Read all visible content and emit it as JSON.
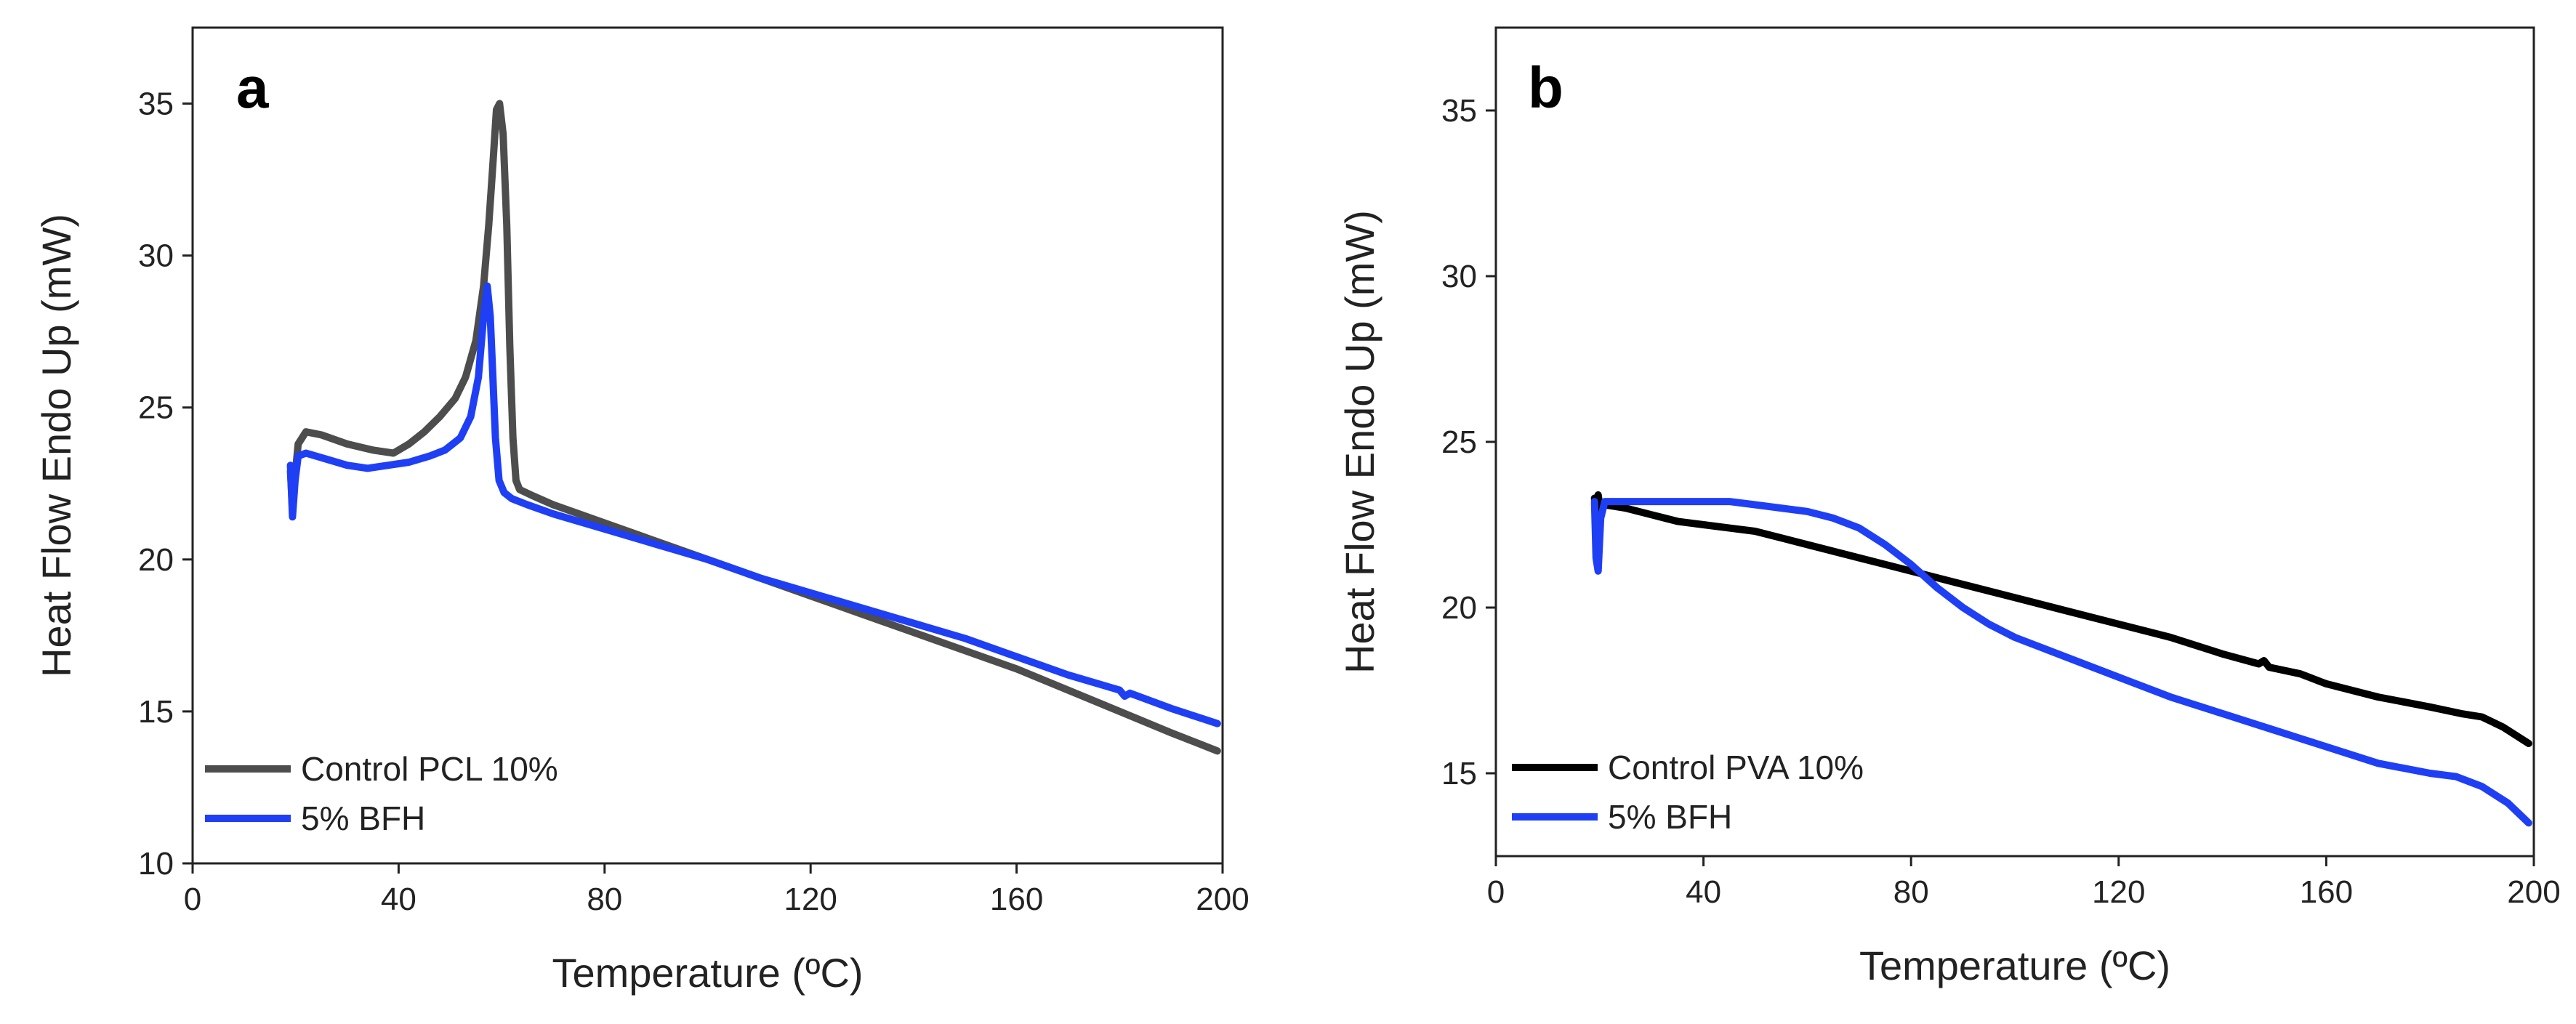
{
  "chart_data": [
    {
      "type": "line",
      "panel_label": "a",
      "xlabel": "Temperature (ºC)",
      "ylabel": "Heat Flow Endo Up (mW)",
      "xlim": [
        0,
        200
      ],
      "ylim": [
        10,
        37.5
      ],
      "xticks": [
        0,
        40,
        80,
        120,
        160,
        200
      ],
      "yticks": [
        10,
        15,
        20,
        25,
        30,
        35
      ],
      "legend_position": "bottom-left",
      "series": [
        {
          "name": "Control PCL 10%",
          "color": "#4d4d4d",
          "points": [
            [
              19,
              22.9
            ],
            [
              19.4,
              21.6
            ],
            [
              19.8,
              22.6
            ],
            [
              20.5,
              23.8
            ],
            [
              22,
              24.2
            ],
            [
              25,
              24.1
            ],
            [
              30,
              23.8
            ],
            [
              35,
              23.6
            ],
            [
              39,
              23.5
            ],
            [
              42,
              23.8
            ],
            [
              45,
              24.2
            ],
            [
              48,
              24.7
            ],
            [
              51,
              25.3
            ],
            [
              53,
              26.0
            ],
            [
              55,
              27.2
            ],
            [
              56.5,
              29
            ],
            [
              57.5,
              31
            ],
            [
              58.3,
              33
            ],
            [
              59,
              34.8
            ],
            [
              59.6,
              35
            ],
            [
              60.3,
              34
            ],
            [
              61,
              31
            ],
            [
              61.6,
              27
            ],
            [
              62.2,
              24
            ],
            [
              62.8,
              22.6
            ],
            [
              63.5,
              22.3
            ],
            [
              66,
              22.1
            ],
            [
              70,
              21.8
            ],
            [
              80,
              21.2
            ],
            [
              90,
              20.6
            ],
            [
              100,
              20.0
            ],
            [
              110,
              19.4
            ],
            [
              120,
              18.8
            ],
            [
              130,
              18.2
            ],
            [
              140,
              17.6
            ],
            [
              150,
              17.0
            ],
            [
              160,
              16.4
            ],
            [
              170,
              15.7
            ],
            [
              180,
              15.0
            ],
            [
              190,
              14.3
            ],
            [
              199,
              13.7
            ]
          ]
        },
        {
          "name": "5% BFH",
          "color": "#1f3ff5",
          "points": [
            [
              19,
              23.1
            ],
            [
              19.4,
              21.4
            ],
            [
              19.9,
              22.6
            ],
            [
              20.5,
              23.4
            ],
            [
              22,
              23.5
            ],
            [
              26,
              23.3
            ],
            [
              30,
              23.1
            ],
            [
              34,
              23.0
            ],
            [
              38,
              23.1
            ],
            [
              42,
              23.2
            ],
            [
              46,
              23.4
            ],
            [
              49,
              23.6
            ],
            [
              52,
              24.0
            ],
            [
              54,
              24.7
            ],
            [
              55.5,
              26
            ],
            [
              56.5,
              28
            ],
            [
              57.2,
              29
            ],
            [
              57.8,
              28
            ],
            [
              58.3,
              26
            ],
            [
              58.8,
              24
            ],
            [
              59.5,
              22.6
            ],
            [
              60.5,
              22.2
            ],
            [
              62,
              22.0
            ],
            [
              65,
              21.8
            ],
            [
              70,
              21.5
            ],
            [
              80,
              21.0
            ],
            [
              90,
              20.5
            ],
            [
              100,
              20.0
            ],
            [
              110,
              19.4
            ],
            [
              120,
              18.9
            ],
            [
              130,
              18.4
            ],
            [
              140,
              17.9
            ],
            [
              150,
              17.4
            ],
            [
              160,
              16.8
            ],
            [
              170,
              16.2
            ],
            [
              180,
              15.7
            ],
            [
              181,
              15.5
            ],
            [
              182,
              15.6
            ],
            [
              190,
              15.1
            ],
            [
              199,
              14.6
            ]
          ]
        }
      ]
    },
    {
      "type": "line",
      "panel_label": "b",
      "xlabel": "Temperature (ºC)",
      "ylabel": "Heat Flow Endo Up (mW)",
      "xlim": [
        0,
        200
      ],
      "ylim": [
        12.5,
        37.5
      ],
      "xticks": [
        0,
        40,
        80,
        120,
        160,
        200
      ],
      "yticks": [
        15,
        20,
        25,
        30,
        35
      ],
      "legend_position": "bottom-left",
      "series": [
        {
          "name": "Control PVA 10%",
          "color": "#000000",
          "points": [
            [
              19,
              23.3
            ],
            [
              19.3,
              22.9
            ],
            [
              19.7,
              23.4
            ],
            [
              20.2,
              22.9
            ],
            [
              21,
              23.1
            ],
            [
              25,
              23.0
            ],
            [
              30,
              22.8
            ],
            [
              35,
              22.6
            ],
            [
              40,
              22.5
            ],
            [
              45,
              22.4
            ],
            [
              50,
              22.3
            ],
            [
              55,
              22.1
            ],
            [
              60,
              21.9
            ],
            [
              65,
              21.7
            ],
            [
              70,
              21.5
            ],
            [
              75,
              21.3
            ],
            [
              80,
              21.1
            ],
            [
              90,
              20.7
            ],
            [
              100,
              20.3
            ],
            [
              110,
              19.9
            ],
            [
              120,
              19.5
            ],
            [
              130,
              19.1
            ],
            [
              140,
              18.6
            ],
            [
              147,
              18.3
            ],
            [
              148,
              18.4
            ],
            [
              149,
              18.2
            ],
            [
              155,
              18.0
            ],
            [
              160,
              17.7
            ],
            [
              170,
              17.3
            ],
            [
              180,
              17.0
            ],
            [
              186,
              16.8
            ],
            [
              190,
              16.7
            ],
            [
              194,
              16.4
            ],
            [
              199,
              15.9
            ]
          ]
        },
        {
          "name": "5% BFH",
          "color": "#1f3ff5",
          "points": [
            [
              19,
              23.2
            ],
            [
              19.3,
              21.5
            ],
            [
              19.7,
              21.1
            ],
            [
              20.2,
              22.7
            ],
            [
              21,
              23.2
            ],
            [
              25,
              23.2
            ],
            [
              30,
              23.2
            ],
            [
              40,
              23.2
            ],
            [
              45,
              23.2
            ],
            [
              50,
              23.1
            ],
            [
              55,
              23.0
            ],
            [
              60,
              22.9
            ],
            [
              65,
              22.7
            ],
            [
              70,
              22.4
            ],
            [
              75,
              21.9
            ],
            [
              80,
              21.3
            ],
            [
              85,
              20.6
            ],
            [
              90,
              20.0
            ],
            [
              95,
              19.5
            ],
            [
              100,
              19.1
            ],
            [
              110,
              18.5
            ],
            [
              120,
              17.9
            ],
            [
              130,
              17.3
            ],
            [
              140,
              16.8
            ],
            [
              150,
              16.3
            ],
            [
              160,
              15.8
            ],
            [
              170,
              15.3
            ],
            [
              180,
              15.0
            ],
            [
              185,
              14.9
            ],
            [
              190,
              14.6
            ],
            [
              195,
              14.1
            ],
            [
              199,
              13.5
            ]
          ]
        }
      ]
    }
  ]
}
